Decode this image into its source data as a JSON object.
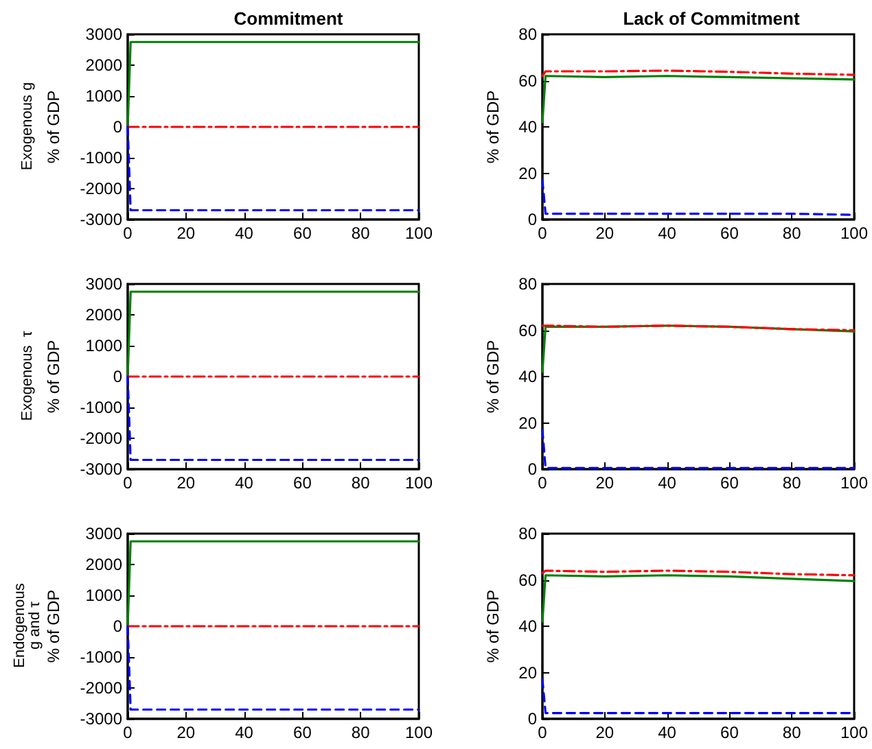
{
  "chart_data": [
    {
      "type": "line",
      "title": "Commitment",
      "ylabel": "% of GDP",
      "annotations": [
        "Exogenous g"
      ],
      "x": [
        0,
        1,
        20,
        40,
        60,
        80,
        100
      ],
      "xlim": [
        0,
        100
      ],
      "xticks": [
        0,
        20,
        40,
        60,
        80,
        100
      ],
      "ylim": [
        -3000,
        3000
      ],
      "yticks": [
        -3000,
        -2000,
        -1000,
        0,
        1000,
        2000,
        3000
      ],
      "grid": false,
      "series": [
        {
          "color": "#008000",
          "line_style": "solid",
          "values": [
            0,
            2750,
            2750,
            2750,
            2750,
            2750,
            2750
          ]
        },
        {
          "color": "#ff0000",
          "line_style": "dashdot",
          "values": [
            0,
            0,
            0,
            0,
            0,
            0,
            0
          ]
        },
        {
          "color": "#0000ff",
          "line_style": "dashed",
          "values": [
            0,
            -2700,
            -2700,
            -2700,
            -2700,
            -2700,
            -2700
          ]
        }
      ]
    },
    {
      "type": "line",
      "title": "Lack of Commitment",
      "ylabel": "% of GDP",
      "x": [
        0,
        1,
        20,
        40,
        60,
        80,
        100
      ],
      "xlim": [
        0,
        100
      ],
      "xticks": [
        0,
        20,
        40,
        60,
        80,
        100
      ],
      "ylim": [
        0,
        80
      ],
      "yticks": [
        0,
        20,
        40,
        60,
        80
      ],
      "grid": false,
      "series": [
        {
          "color": "#008000",
          "line_style": "solid",
          "values": [
            42,
            62,
            61.5,
            62,
            61.5,
            61,
            60.5
          ]
        },
        {
          "color": "#ff0000",
          "line_style": "dashdot",
          "values": [
            62,
            64,
            64,
            64.3,
            63.8,
            63,
            62.5
          ]
        },
        {
          "color": "#0000ff",
          "line_style": "dashed",
          "values": [
            17,
            2.5,
            2.5,
            2.5,
            2.5,
            2.5,
            2
          ]
        }
      ]
    },
    {
      "type": "line",
      "ylabel": "% of GDP",
      "annotations": [
        "Exogenous  τ"
      ],
      "x": [
        0,
        1,
        20,
        40,
        60,
        80,
        100
      ],
      "xlim": [
        0,
        100
      ],
      "xticks": [
        0,
        20,
        40,
        60,
        80,
        100
      ],
      "ylim": [
        -3000,
        3000
      ],
      "yticks": [
        -3000,
        -2000,
        -1000,
        0,
        1000,
        2000,
        3000
      ],
      "grid": false,
      "series": [
        {
          "color": "#008000",
          "line_style": "solid",
          "values": [
            0,
            2750,
            2750,
            2750,
            2750,
            2750,
            2750
          ]
        },
        {
          "color": "#ff0000",
          "line_style": "dashdot",
          "values": [
            0,
            0,
            0,
            0,
            0,
            0,
            0
          ]
        },
        {
          "color": "#0000ff",
          "line_style": "dashed",
          "values": [
            0,
            -2700,
            -2700,
            -2700,
            -2700,
            -2700,
            -2700
          ]
        }
      ]
    },
    {
      "type": "line",
      "ylabel": "% of GDP",
      "x": [
        0,
        1,
        20,
        40,
        60,
        80,
        100
      ],
      "xlim": [
        0,
        100
      ],
      "xticks": [
        0,
        20,
        40,
        60,
        80,
        100
      ],
      "ylim": [
        0,
        80
      ],
      "yticks": [
        0,
        20,
        40,
        60,
        80
      ],
      "grid": false,
      "series": [
        {
          "color": "#008000",
          "line_style": "solid",
          "values": [
            42,
            61.5,
            61.5,
            62,
            61.5,
            60.5,
            59.5
          ]
        },
        {
          "color": "#ff0000",
          "line_style": "dashdot",
          "values": [
            62,
            62,
            61.5,
            62,
            61.5,
            60.5,
            60
          ]
        },
        {
          "color": "#0000ff",
          "line_style": "dashed",
          "values": [
            17,
            0.5,
            0.5,
            0.5,
            0.5,
            0.5,
            0.5
          ]
        }
      ]
    },
    {
      "type": "line",
      "ylabel": "% of GDP",
      "annotations": [
        "Endogenous\ng and τ"
      ],
      "x": [
        0,
        1,
        20,
        40,
        60,
        80,
        100
      ],
      "xlim": [
        0,
        100
      ],
      "xticks": [
        0,
        20,
        40,
        60,
        80,
        100
      ],
      "ylim": [
        -3000,
        3000
      ],
      "yticks": [
        -3000,
        -2000,
        -1000,
        0,
        1000,
        2000,
        3000
      ],
      "grid": false,
      "series": [
        {
          "color": "#008000",
          "line_style": "solid",
          "values": [
            0,
            2750,
            2750,
            2750,
            2750,
            2750,
            2750
          ]
        },
        {
          "color": "#ff0000",
          "line_style": "dashdot",
          "values": [
            0,
            0,
            0,
            0,
            0,
            0,
            0
          ]
        },
        {
          "color": "#0000ff",
          "line_style": "dashed",
          "values": [
            0,
            -2700,
            -2700,
            -2700,
            -2700,
            -2700,
            -2700
          ]
        }
      ]
    },
    {
      "type": "line",
      "ylabel": "% of GDP",
      "x": [
        0,
        1,
        20,
        40,
        60,
        80,
        100
      ],
      "xlim": [
        0,
        100
      ],
      "xticks": [
        0,
        20,
        40,
        60,
        80,
        100
      ],
      "ylim": [
        0,
        80
      ],
      "yticks": [
        0,
        20,
        40,
        60,
        80
      ],
      "grid": false,
      "series": [
        {
          "color": "#008000",
          "line_style": "solid",
          "values": [
            42,
            62,
            61.5,
            62,
            61.5,
            60.5,
            59.5
          ]
        },
        {
          "color": "#ff0000",
          "line_style": "dashdot",
          "values": [
            63,
            64,
            63.5,
            64,
            63.5,
            62.5,
            62
          ]
        },
        {
          "color": "#0000ff",
          "line_style": "dashed",
          "values": [
            17,
            2.5,
            2.5,
            2.5,
            2.5,
            2.5,
            2.5
          ]
        }
      ]
    }
  ]
}
